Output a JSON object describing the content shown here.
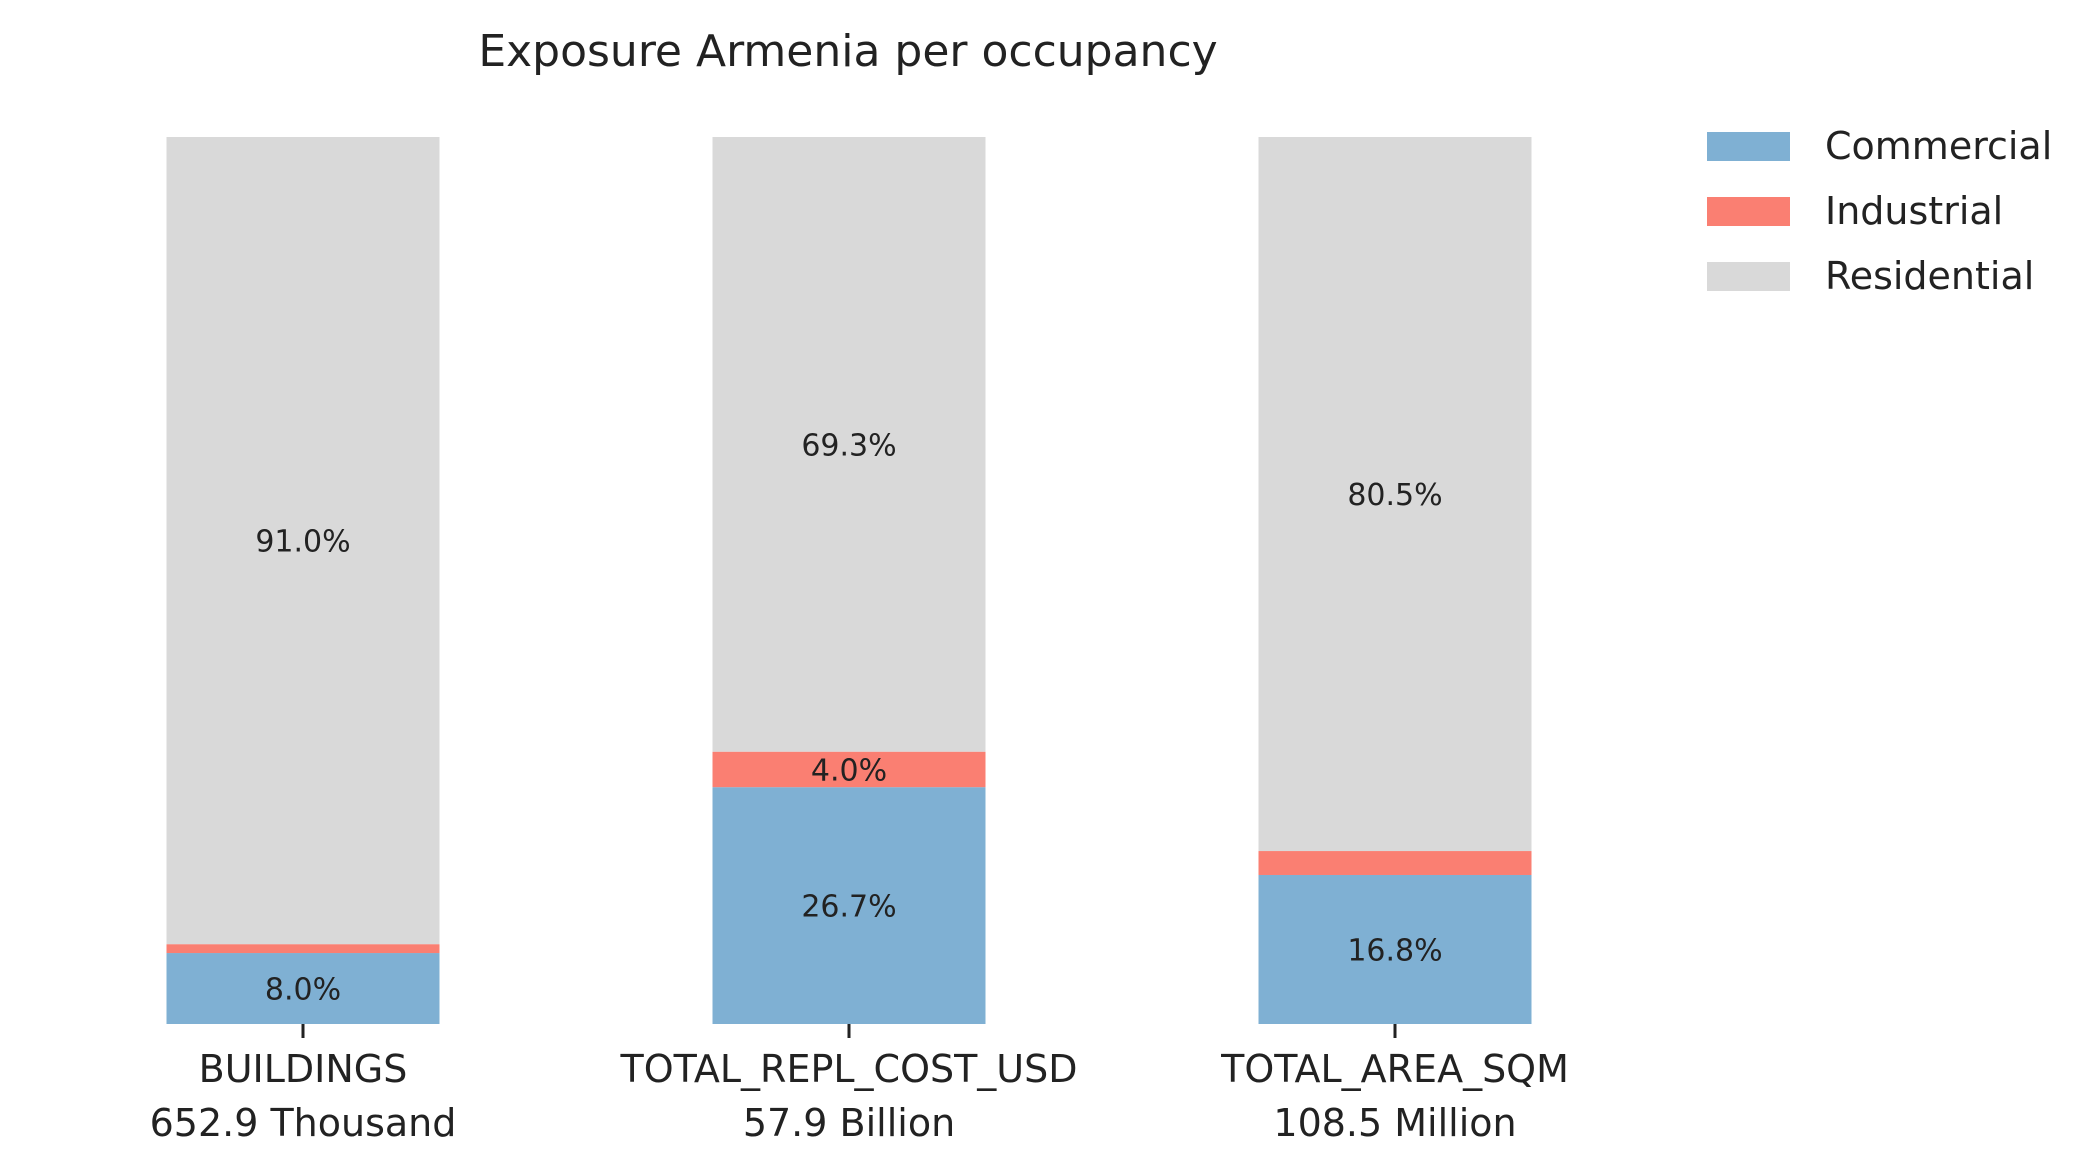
{
  "chart_data": {
    "type": "bar",
    "stacked": true,
    "normalized_percent": true,
    "title": "Exposure Armenia per occupancy",
    "categories": [
      "BUILDINGS",
      "TOTAL_REPL_COST_USD",
      "TOTAL_AREA_SQM"
    ],
    "category_totals": [
      "652.9 Thousand",
      "57.9 Billion",
      "108.5 Million"
    ],
    "series": [
      {
        "name": "Commercial",
        "color": "#7fb0d3",
        "values": [
          8.0,
          26.7,
          16.8
        ],
        "labels": [
          "8.0%",
          "26.7%",
          "16.8%"
        ]
      },
      {
        "name": "Industrial",
        "color": "#fa7f72",
        "values": [
          1.0,
          4.0,
          2.7
        ],
        "labels": [
          "",
          "4.0%",
          ""
        ]
      },
      {
        "name": "Residential",
        "color": "#d9d9d9",
        "values": [
          91.0,
          69.3,
          80.5
        ],
        "labels": [
          "91.0%",
          "69.3%",
          "80.5%"
        ]
      }
    ],
    "ylim": [
      0,
      100
    ],
    "grid": false,
    "legend_position": "top-right"
  }
}
